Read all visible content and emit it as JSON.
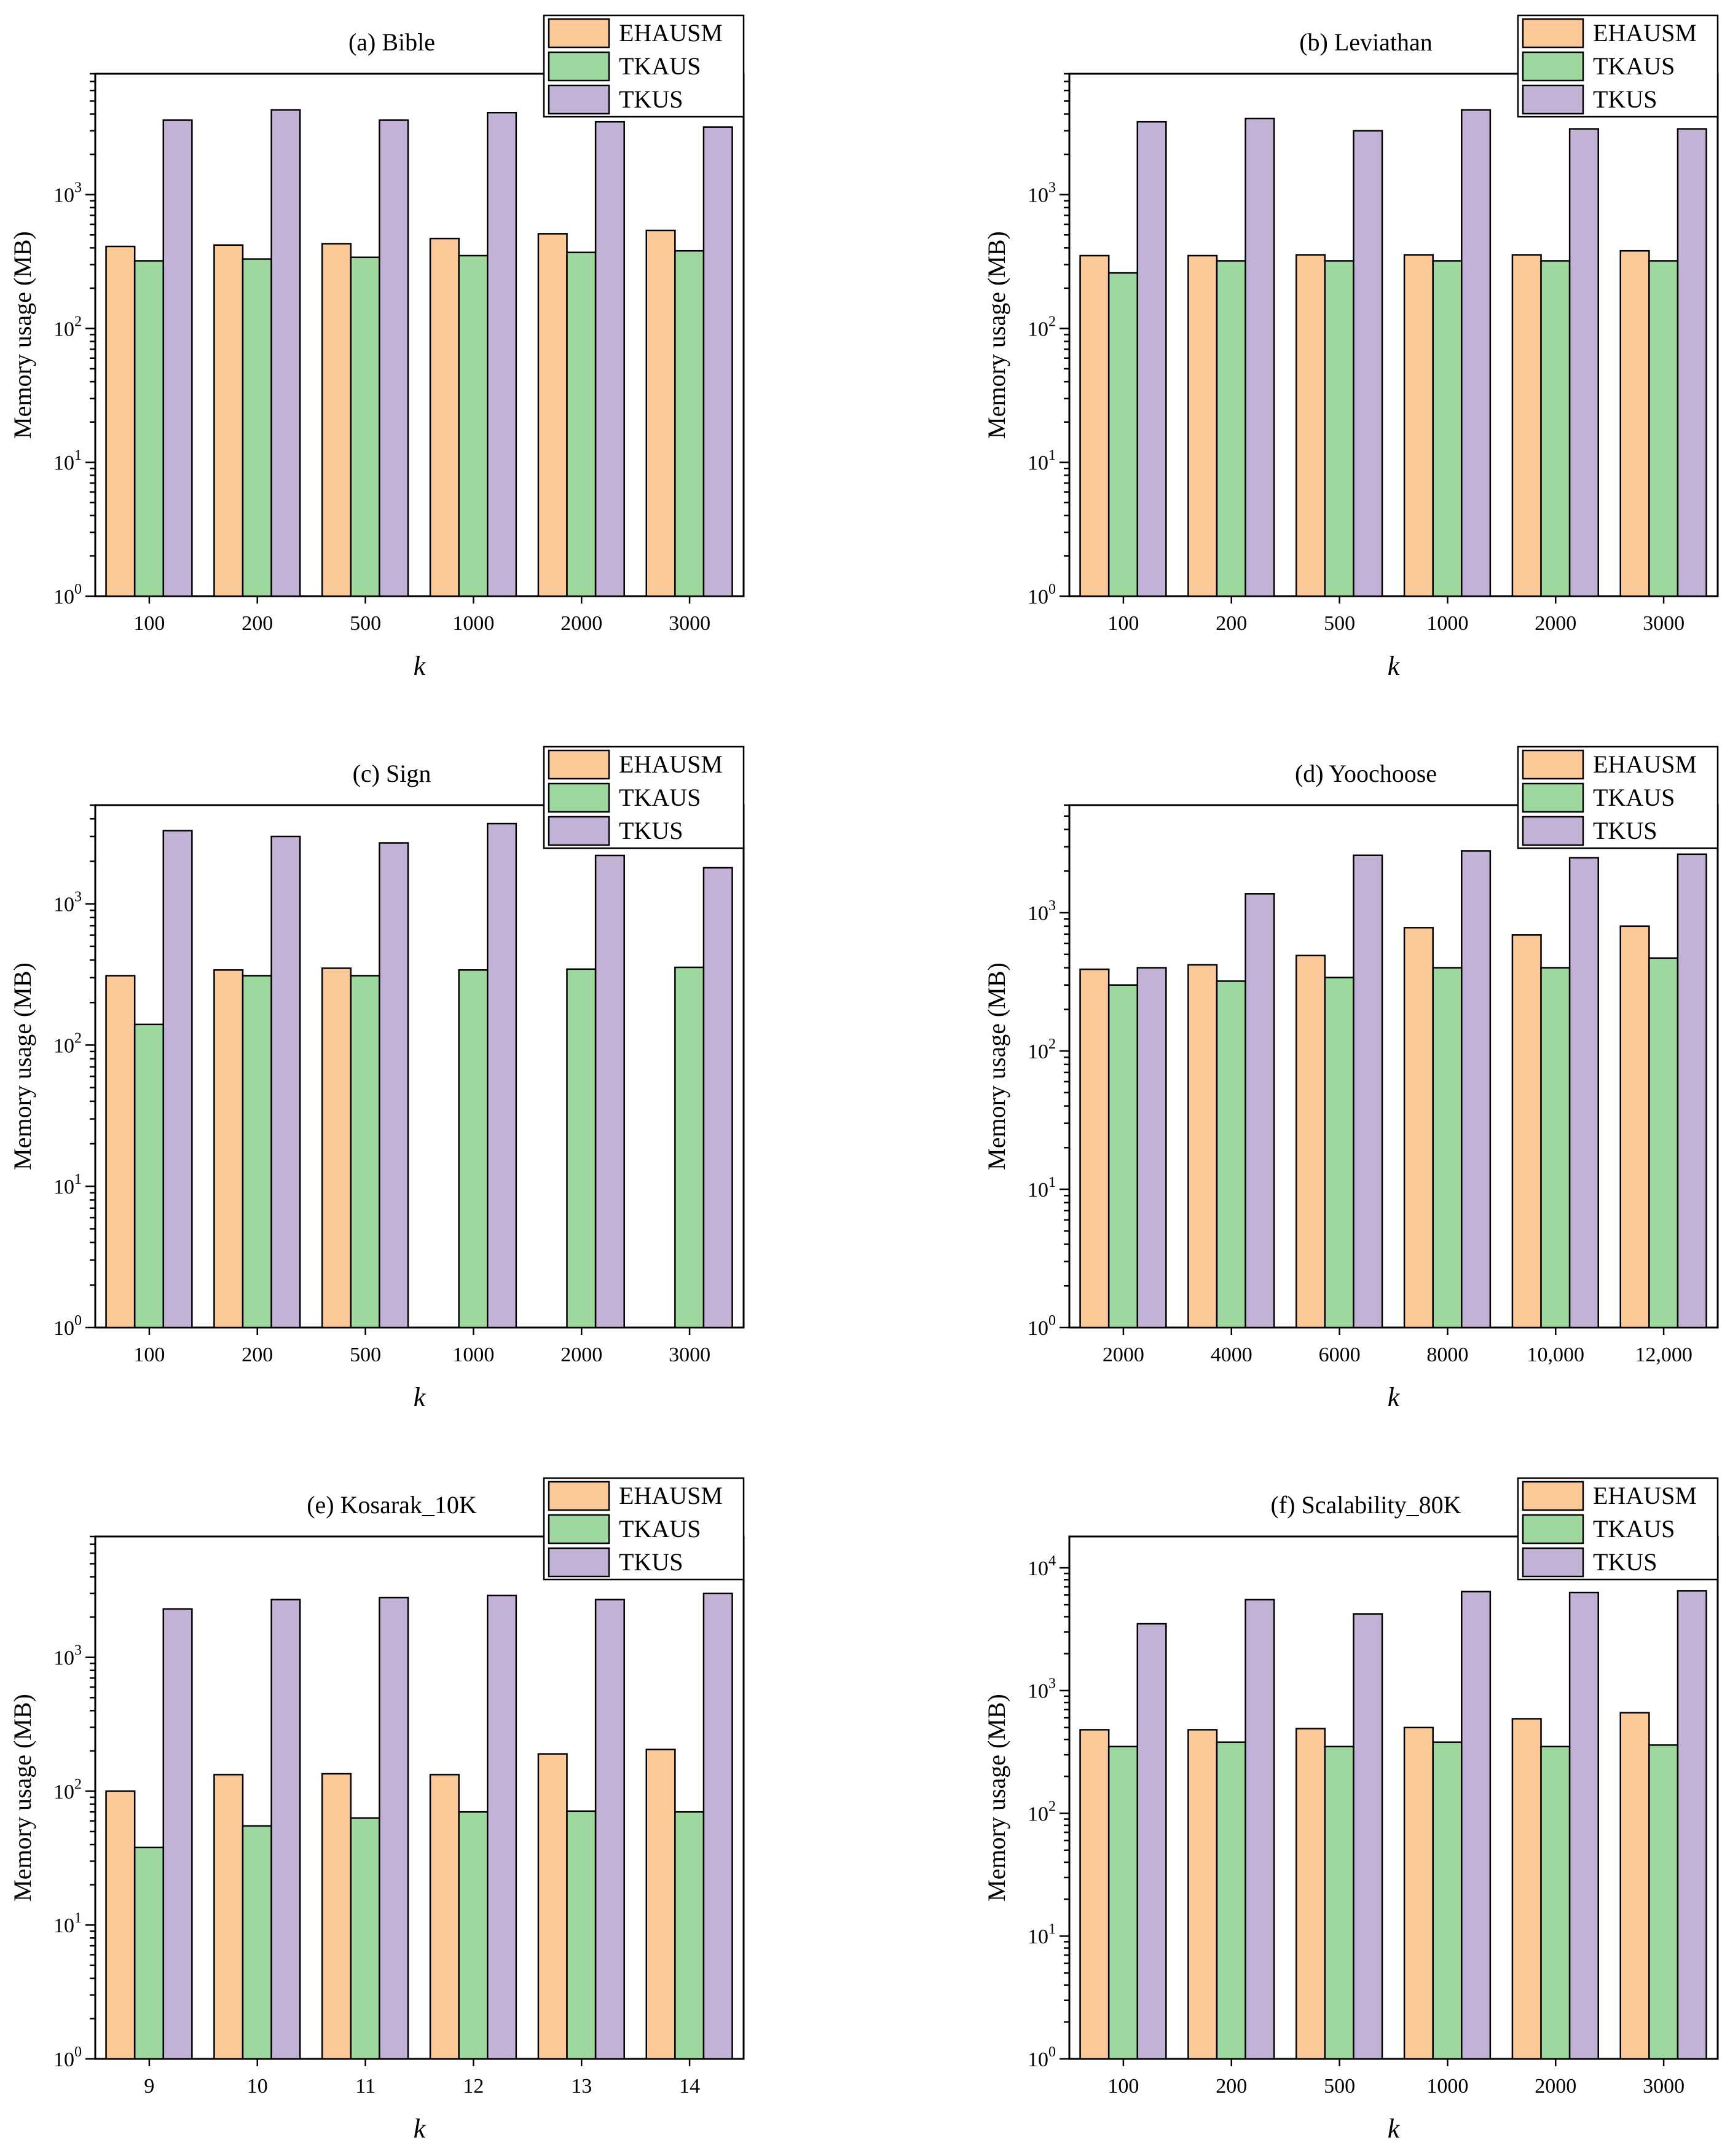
{
  "colors": {
    "EHAUSM": "#fbc898",
    "TKAUS": "#9fd89f",
    "TKUS": "#c2b2d6",
    "stroke": "#000000"
  },
  "chart_data": [
    {
      "type": "bar",
      "title": "(a) Bible",
      "xlabel": "k",
      "ylabel": "Memory usage (MB)",
      "yscale": "log",
      "ylim": [
        1,
        8000
      ],
      "ytick_powers": [
        0,
        1,
        2,
        3
      ],
      "categories": [
        "100",
        "200",
        "500",
        "1000",
        "2000",
        "3000"
      ],
      "series": [
        {
          "name": "EHAUSM",
          "values": [
            410,
            420,
            430,
            470,
            510,
            540
          ]
        },
        {
          "name": "TKAUS",
          "values": [
            320,
            330,
            340,
            350,
            370,
            380
          ]
        },
        {
          "name": "TKUS",
          "values": [
            3600,
            4300,
            3600,
            4100,
            3500,
            3200
          ]
        }
      ]
    },
    {
      "type": "bar",
      "title": "(b) Leviathan",
      "xlabel": "k",
      "ylabel": "Memory usage (MB)",
      "yscale": "log",
      "ylim": [
        1,
        8000
      ],
      "ytick_powers": [
        0,
        1,
        2,
        3
      ],
      "categories": [
        "100",
        "200",
        "500",
        "1000",
        "2000",
        "3000"
      ],
      "series": [
        {
          "name": "EHAUSM",
          "values": [
            350,
            350,
            355,
            355,
            355,
            380
          ]
        },
        {
          "name": "TKAUS",
          "values": [
            260,
            320,
            320,
            320,
            320,
            320
          ]
        },
        {
          "name": "TKUS",
          "values": [
            3500,
            3700,
            3000,
            4300,
            3100,
            3100
          ]
        }
      ]
    },
    {
      "type": "bar",
      "title": "(c) Sign",
      "xlabel": "k",
      "ylabel": "Memory usage (MB)",
      "yscale": "log",
      "ylim": [
        1,
        5000
      ],
      "ytick_powers": [
        0,
        1,
        2,
        3
      ],
      "categories": [
        "100",
        "200",
        "500",
        "1000",
        "2000",
        "3000"
      ],
      "series": [
        {
          "name": "EHAUSM",
          "values": [
            310,
            340,
            350,
            null,
            null,
            null
          ]
        },
        {
          "name": "TKAUS",
          "values": [
            140,
            310,
            310,
            340,
            345,
            355
          ]
        },
        {
          "name": "TKUS",
          "values": [
            3300,
            3000,
            2700,
            3700,
            2200,
            1800
          ]
        }
      ]
    },
    {
      "type": "bar",
      "title": "(d) Yoochoose",
      "xlabel": "k",
      "ylabel": "Memory usage (MB)",
      "yscale": "log",
      "ylim": [
        1,
        6000
      ],
      "ytick_powers": [
        0,
        1,
        2,
        3
      ],
      "categories": [
        "2000",
        "4000",
        "6000",
        "8000",
        "10,000",
        "12,000"
      ],
      "series": [
        {
          "name": "EHAUSM",
          "values": [
            390,
            420,
            490,
            780,
            690,
            800
          ]
        },
        {
          "name": "TKAUS",
          "values": [
            300,
            320,
            340,
            400,
            400,
            470
          ]
        },
        {
          "name": "TKUS",
          "values": [
            400,
            1370,
            2600,
            2800,
            2500,
            2650
          ]
        }
      ]
    },
    {
      "type": "bar",
      "title": "(e) Kosarak_10K",
      "xlabel": "k",
      "ylabel": "Memory usage (MB)",
      "yscale": "log",
      "ylim": [
        1,
        8000
      ],
      "ytick_powers": [
        0,
        1,
        2,
        3
      ],
      "categories": [
        "9",
        "10",
        "11",
        "12",
        "13",
        "14"
      ],
      "series": [
        {
          "name": "EHAUSM",
          "values": [
            100,
            133,
            135,
            133,
            190,
            205
          ]
        },
        {
          "name": "TKAUS",
          "values": [
            38,
            55,
            63,
            70,
            71,
            70
          ]
        },
        {
          "name": "TKUS",
          "values": [
            2300,
            2700,
            2800,
            2900,
            2700,
            3000
          ]
        }
      ]
    },
    {
      "type": "bar",
      "title": "(f) Scalability_80K",
      "xlabel": "k",
      "ylabel": "Memory usage (MB)",
      "yscale": "log",
      "ylim": [
        1,
        18000
      ],
      "ytick_powers": [
        0,
        1,
        2,
        3,
        4
      ],
      "categories": [
        "100",
        "200",
        "500",
        "1000",
        "2000",
        "3000"
      ],
      "series": [
        {
          "name": "EHAUSM",
          "values": [
            480,
            480,
            490,
            500,
            590,
            660
          ]
        },
        {
          "name": "TKAUS",
          "values": [
            350,
            380,
            350,
            380,
            350,
            360
          ]
        },
        {
          "name": "TKUS",
          "values": [
            3500,
            5500,
            4200,
            6400,
            6300,
            6500
          ]
        }
      ]
    }
  ]
}
